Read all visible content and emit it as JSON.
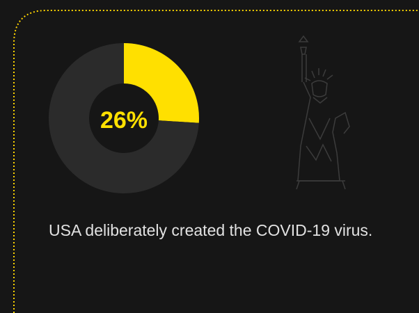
{
  "chart_data": {
    "type": "donut",
    "values": [
      26,
      74
    ],
    "value_labels": [
      "26%",
      null
    ],
    "colors": [
      "#ffe000",
      "#2b2b2b"
    ],
    "caption": "USA deliberately created the COVID-19 virus."
  }
}
